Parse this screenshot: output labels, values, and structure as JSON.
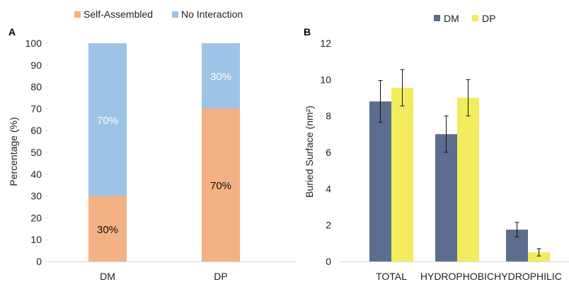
{
  "chart_data": [
    {
      "panel_label": "A",
      "type": "bar",
      "stacked": true,
      "categories": [
        "DM",
        "DP"
      ],
      "series": [
        {
          "name": "Self-Assembled",
          "values": [
            30,
            70
          ],
          "labels": [
            "30%",
            "70%"
          ],
          "color": "#F4B183"
        },
        {
          "name": "No Interaction",
          "values": [
            70,
            30
          ],
          "labels": [
            "70%",
            "30%"
          ],
          "color": "#9DC3E6"
        }
      ],
      "ylabel": "Percentage (%)",
      "ylim": [
        0,
        100
      ],
      "yticks": [
        0,
        10,
        20,
        30,
        40,
        50,
        60,
        70,
        80,
        90,
        100
      ],
      "legend": "top",
      "grid": false
    },
    {
      "panel_label": "B",
      "type": "bar",
      "categories": [
        "TOTAL",
        "HYDROPHOBIC",
        "HYDROPHILIC"
      ],
      "series": [
        {
          "name": "DM",
          "values": [
            8.8,
            7.0,
            1.75
          ],
          "errors": [
            1.15,
            1.0,
            0.4
          ],
          "color": "#5B6E8F"
        },
        {
          "name": "DP",
          "values": [
            9.55,
            9.0,
            0.5
          ],
          "errors": [
            1.0,
            1.0,
            0.2
          ],
          "color": "#F2EC5E"
        }
      ],
      "ylabel": "Buried Surface (nm²)",
      "ylim": [
        0,
        12
      ],
      "yticks": [
        0,
        2,
        4,
        6,
        8,
        10,
        12
      ],
      "legend": "top",
      "grid": false
    }
  ]
}
